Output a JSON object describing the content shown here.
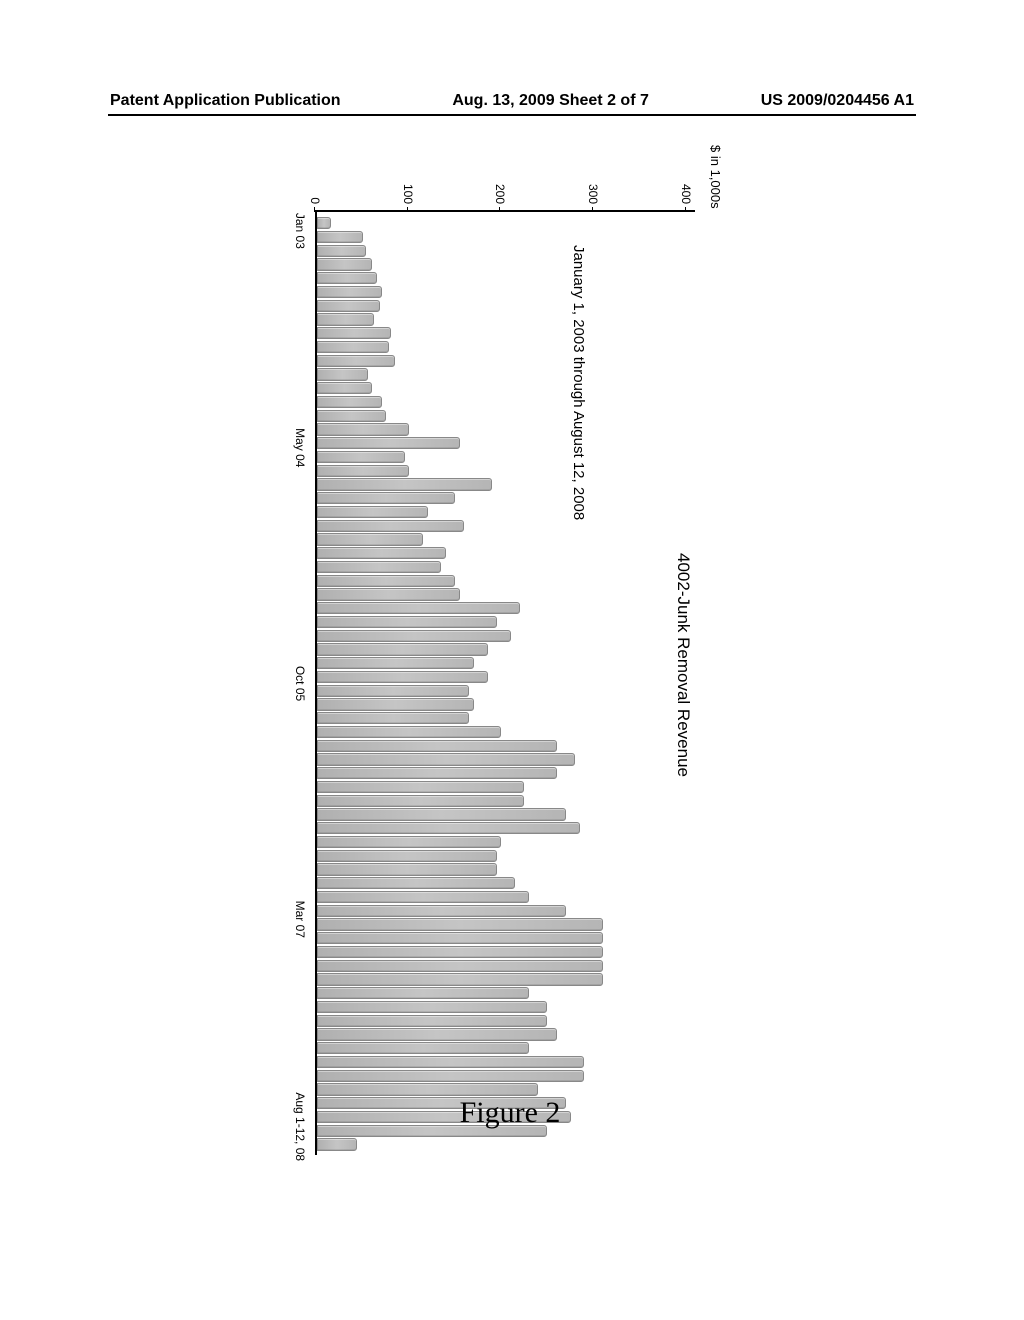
{
  "header": {
    "left": "Patent Application Publication",
    "center": "Aug. 13, 2009  Sheet 2 of 7",
    "right": "US 2009/0204456 A1"
  },
  "chart": {
    "type": "bar",
    "title": "4002-Junk Removal Revenue",
    "subtitle": "January 1, 2003 through August 12, 2008",
    "y_axis_label": "$ in 1,000s",
    "ylim": [
      0,
      410
    ],
    "y_ticks": [
      0,
      100,
      200,
      300,
      400
    ],
    "x_labels": [
      {
        "text": "Jan 03",
        "position_pct": 2
      },
      {
        "text": "May 04",
        "position_pct": 25
      },
      {
        "text": "Oct 05",
        "position_pct": 50
      },
      {
        "text": "Mar 07",
        "position_pct": 75
      },
      {
        "text": "Aug 1-12, 08",
        "position_pct": 97
      }
    ],
    "bar_fill": "#bcbcbc",
    "bar_border": "#888888",
    "axis_color": "#000000",
    "background_color": "#ffffff",
    "text_color": "#000000",
    "title_fontsize": 17,
    "subtitle_fontsize": 15,
    "tick_fontsize": 12,
    "values": [
      15,
      50,
      53,
      60,
      65,
      70,
      68,
      62,
      80,
      78,
      85,
      55,
      60,
      70,
      75,
      100,
      155,
      95,
      100,
      190,
      150,
      120,
      160,
      115,
      140,
      135,
      150,
      155,
      220,
      195,
      210,
      185,
      170,
      185,
      165,
      170,
      165,
      200,
      260,
      280,
      260,
      225,
      225,
      270,
      285,
      200,
      195,
      195,
      215,
      230,
      270,
      310,
      310,
      310,
      310,
      310,
      230,
      250,
      250,
      260,
      230,
      290,
      290,
      240,
      270,
      275,
      250,
      43
    ]
  },
  "figure_label": "Figure 2"
}
